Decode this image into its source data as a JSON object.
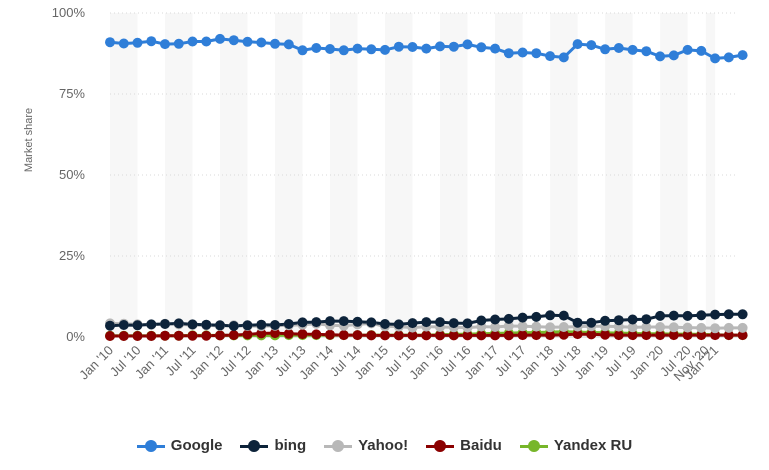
{
  "chart_data": {
    "type": "line",
    "ylabel": "Market share",
    "ylim": [
      0,
      100
    ],
    "yticks": [
      0,
      25,
      50,
      75,
      100
    ],
    "ytick_labels": [
      "0%",
      "25%",
      "50%",
      "75%",
      "100%"
    ],
    "xtick_labels": [
      "Jan '10",
      "Jul '10",
      "Jan '11",
      "Jul '11",
      "Jan '12",
      "Jul '12",
      "Jan '13",
      "Jul '13",
      "Jan '14",
      "Jul '14",
      "Jan '15",
      "Jul '15",
      "Jan '16",
      "Jul '16",
      "Jan '17",
      "Jul '17",
      "Jan '18",
      "Jul '18",
      "Jan '19",
      "Jul '19",
      "Jan '20",
      "Jul '20",
      "Nov '20",
      "Jan '21"
    ],
    "xtick_index": [
      0,
      6,
      12,
      18,
      24,
      30,
      36,
      42,
      48,
      54,
      60,
      66,
      72,
      78,
      84,
      90,
      96,
      102,
      108,
      114,
      120,
      126,
      130,
      132
    ],
    "x_start": "Jan 2010",
    "x_end": "Jun 2021",
    "grid": true,
    "legend_position": "bottom",
    "series": [
      {
        "name": "Google",
        "color": "#2f7ed8",
        "values": [
          91.0,
          90.6,
          90.8,
          91.3,
          90.4,
          90.5,
          91.2,
          91.2,
          92.0,
          91.6,
          91.1,
          90.9,
          90.5,
          90.3,
          88.5,
          89.2,
          88.9,
          88.5,
          89.0,
          88.8,
          88.6,
          89.6,
          89.5,
          89.0,
          89.7,
          89.6,
          90.3,
          89.4,
          89.0,
          87.6,
          87.8,
          87.6,
          86.7,
          86.3,
          90.4,
          90.1,
          88.8,
          89.2,
          88.6,
          88.2,
          86.6,
          86.9,
          88.6,
          88.3,
          86.0,
          86.3,
          87.0
        ]
      },
      {
        "name": "bing",
        "color": "#0d233a",
        "values": [
          3.5,
          3.7,
          3.6,
          3.9,
          4.0,
          4.2,
          3.9,
          3.8,
          3.6,
          3.4,
          3.6,
          3.8,
          3.7,
          4.0,
          4.5,
          4.6,
          4.9,
          4.9,
          4.7,
          4.5,
          4.0,
          3.9,
          4.3,
          4.6,
          4.6,
          4.3,
          4.2,
          5.1,
          5.4,
          5.6,
          6.0,
          6.2,
          6.7,
          6.6,
          4.4,
          4.4,
          5.0,
          5.2,
          5.4,
          5.5,
          6.5,
          6.6,
          6.5,
          6.7,
          6.9,
          7.0,
          7.0
        ]
      },
      {
        "name": "Yahoo!",
        "color": "#b8b8b8",
        "values": [
          4.2,
          4.1,
          3.9,
          3.8,
          4.1,
          3.9,
          3.7,
          3.6,
          3.4,
          3.6,
          3.4,
          3.3,
          3.5,
          3.6,
          3.8,
          4.1,
          3.6,
          3.5,
          3.9,
          4.2,
          3.3,
          3.2,
          2.9,
          3.2,
          3.1,
          3.0,
          2.9,
          3.2,
          3.1,
          3.4,
          3.3,
          3.2,
          3.0,
          3.1,
          3.2,
          3.3,
          3.3,
          3.2,
          3.0,
          3.1,
          3.1,
          3.0,
          2.9,
          2.8,
          2.7,
          2.8,
          2.8
        ]
      },
      {
        "name": "Baidu",
        "color": "#8b0000",
        "values": [
          0.3,
          0.3,
          0.3,
          0.3,
          0.4,
          0.4,
          0.4,
          0.4,
          0.5,
          0.6,
          0.8,
          1.1,
          1.2,
          1.0,
          0.9,
          0.8,
          0.7,
          0.6,
          0.6,
          0.5,
          0.5,
          0.5,
          0.5,
          0.5,
          0.5,
          0.5,
          0.5,
          0.5,
          0.5,
          0.5,
          0.6,
          0.6,
          0.6,
          0.7,
          0.9,
          0.8,
          0.7,
          0.6,
          0.6,
          0.6,
          0.6,
          0.6,
          0.6,
          0.6,
          0.6,
          0.6,
          0.6
        ]
      },
      {
        "name": "Yandex RU",
        "color": "#77b62a",
        "values": [
          0.4,
          0.4,
          0.4,
          0.4,
          0.4,
          0.4,
          0.5,
          0.5,
          0.5,
          0.5,
          0.5,
          0.5,
          0.5,
          0.6,
          0.6,
          0.6,
          0.6,
          0.6,
          0.6,
          0.6,
          0.6,
          0.6,
          0.6,
          0.6,
          0.7,
          0.8,
          0.9,
          1.0,
          1.1,
          1.2,
          1.3,
          1.4,
          1.5,
          1.6,
          1.5,
          1.4,
          1.3,
          1.2,
          1.1,
          1.0,
          1.0,
          0.9,
          0.9,
          0.8,
          0.7,
          0.6,
          0.6
        ]
      }
    ]
  }
}
